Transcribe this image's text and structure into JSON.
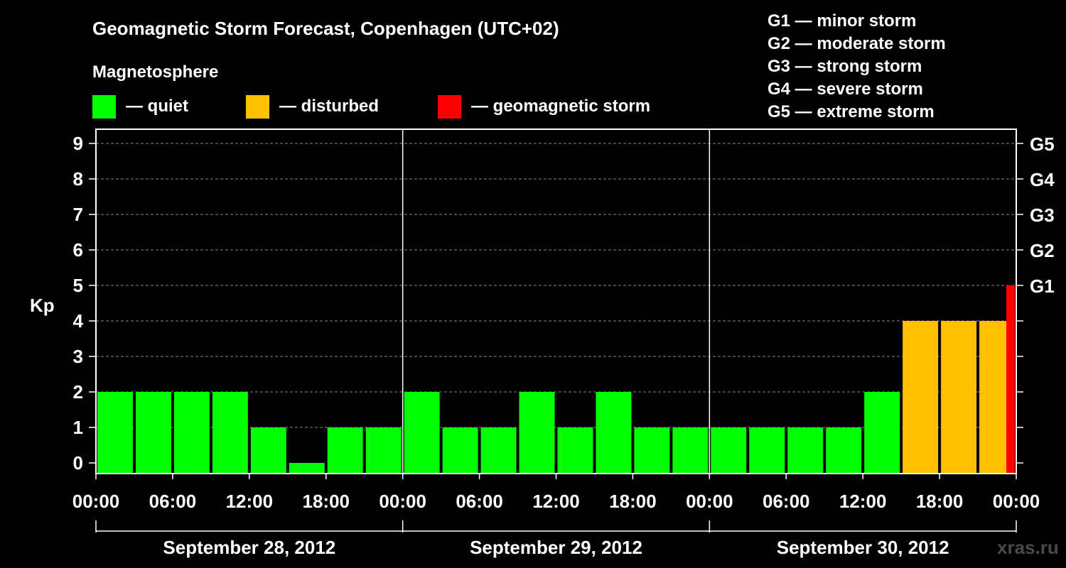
{
  "chart_data": {
    "type": "bar",
    "title": "Geomagnetic Storm Forecast, Copenhagen (UTC+02)",
    "ylabel": "Kp",
    "ylim": [
      0,
      9
    ],
    "yticks": [
      "0",
      "1",
      "2",
      "3",
      "4",
      "5",
      "6",
      "7",
      "8",
      "9"
    ],
    "right_axis_labels": [
      {
        "kp": 5,
        "label": "G1"
      },
      {
        "kp": 6,
        "label": "G2"
      },
      {
        "kp": 7,
        "label": "G3"
      },
      {
        "kp": 8,
        "label": "G4"
      },
      {
        "kp": 9,
        "label": "G5"
      }
    ],
    "xticks": [
      "00:00",
      "06:00",
      "12:00",
      "18:00",
      "00:00",
      "06:00",
      "12:00",
      "18:00",
      "00:00",
      "06:00",
      "12:00",
      "18:00",
      "00:00"
    ],
    "days": [
      "September 28, 2012",
      "September 29, 2012",
      "September 30, 2012"
    ],
    "bar_interval_hours": 3,
    "time_start": "2012-09-28 00:00",
    "values": [
      2,
      2,
      2,
      2,
      1,
      0,
      1,
      1,
      2,
      1,
      1,
      2,
      1,
      2,
      1,
      1,
      1,
      1,
      1,
      1,
      2,
      4,
      4,
      4,
      5
    ],
    "grid": "horizontal dashed",
    "legend": {
      "heading": "Magnetosphere",
      "items": [
        {
          "label": "— quiet",
          "color": "#00ff00"
        },
        {
          "label": "— disturbed",
          "color": "#ffc000"
        },
        {
          "label": "— geomagnetic storm",
          "color": "#ff0000"
        }
      ]
    },
    "scale_legend": [
      "G1 — minor storm",
      "G2 — moderate storm",
      "G3 — strong storm",
      "G4 — severe storm",
      "G5 — extreme storm"
    ],
    "watermark": "xras.ru"
  }
}
